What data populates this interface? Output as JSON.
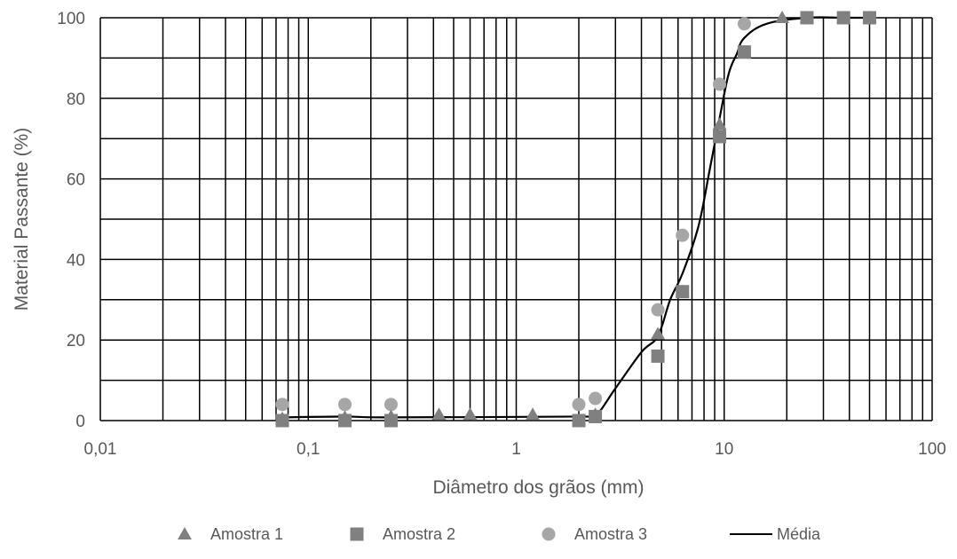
{
  "chart_data": {
    "type": "scatter",
    "title": "",
    "xlabel": "Diâmetro dos grãos (mm)",
    "ylabel": "Material Passante (%)",
    "x_scale": "log",
    "xlim": [
      0.01,
      100
    ],
    "ylim": [
      0,
      100
    ],
    "x_ticks": [
      "0,01",
      "0,1",
      "1",
      "10",
      "100"
    ],
    "y_ticks": [
      "0",
      "20",
      "40",
      "60",
      "80",
      "100"
    ],
    "grid": true,
    "legend_position": "bottom",
    "series": [
      {
        "name": "Amostra 1",
        "marker": "triangle",
        "color": "#808080",
        "x": [
          0.075,
          0.15,
          0.25,
          0.425,
          0.6,
          1.2,
          2.4,
          4.8,
          6.3,
          9.5,
          12.5,
          19,
          25,
          37.5,
          50
        ],
        "y": [
          0.5,
          0.8,
          1.0,
          1.5,
          1.5,
          1.5,
          1.5,
          21.5,
          32,
          73.5,
          91.5,
          100,
          100,
          100,
          100
        ]
      },
      {
        "name": "Amostra 2",
        "marker": "square",
        "color": "#808080",
        "x": [
          0.075,
          0.15,
          0.25,
          2.0,
          2.4,
          4.8,
          6.3,
          9.5,
          12.5,
          25,
          37.5,
          50
        ],
        "y": [
          0,
          0,
          0,
          0,
          1,
          16,
          32,
          70.5,
          91.5,
          100,
          100,
          100
        ]
      },
      {
        "name": "Amostra 3",
        "marker": "circle",
        "color": "#a6a6a6",
        "x": [
          0.075,
          0.15,
          0.25,
          2.0,
          2.4,
          4.8,
          6.3,
          9.5,
          12.5,
          25
        ],
        "y": [
          4,
          4,
          4,
          4,
          5.5,
          27.5,
          46,
          83.5,
          98.5,
          100
        ]
      },
      {
        "name": "Média",
        "marker": "line",
        "color": "#000000",
        "x": [
          0.075,
          0.15,
          0.25,
          2.0,
          2.4,
          3.0,
          4.0,
          4.8,
          5.5,
          6.3,
          7.5,
          8.5,
          9.5,
          10.5,
          11.5,
          12.5,
          16,
          25,
          37.5,
          50
        ],
        "y": [
          0.8,
          1.0,
          0.8,
          1.0,
          1.2,
          8,
          17,
          21,
          30,
          36.5,
          48,
          62,
          75,
          86,
          91,
          95,
          98.5,
          100,
          100,
          100
        ]
      }
    ]
  }
}
